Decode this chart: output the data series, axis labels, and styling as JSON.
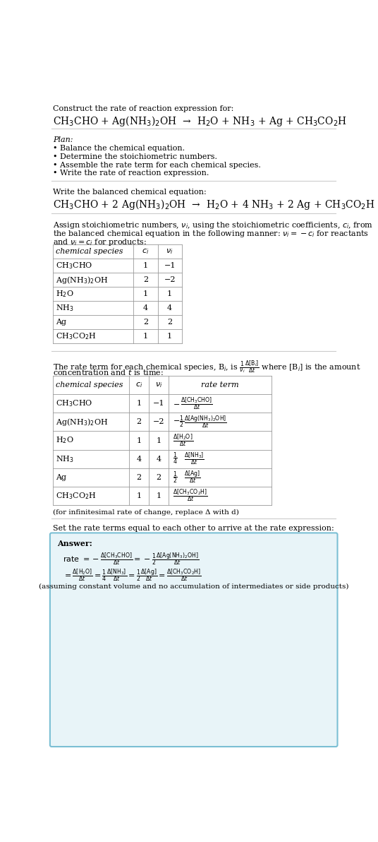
{
  "title_line1": "Construct the rate of reaction expression for:",
  "reaction_unbalanced": "CH$_3$CHO + Ag(NH$_3$)$_2$OH  →  H$_2$O + NH$_3$ + Ag + CH$_3$CO$_2$H",
  "plan_header": "Plan:",
  "plan_items": [
    "• Balance the chemical equation.",
    "• Determine the stoichiometric numbers.",
    "• Assemble the rate term for each chemical species.",
    "• Write the rate of reaction expression."
  ],
  "balanced_header": "Write the balanced chemical equation:",
  "reaction_balanced": "CH$_3$CHO + 2 Ag(NH$_3$)$_2$OH  →  H$_2$O + 4 NH$_3$ + 2 Ag + CH$_3$CO$_2$H",
  "assign_text1": "Assign stoichiometric numbers, $\\nu_i$, using the stoichiometric coefficients, $c_i$, from",
  "assign_text2": "the balanced chemical equation in the following manner: $\\nu_i = -c_i$ for reactants",
  "assign_text3": "and $\\nu_i = c_i$ for products:",
  "table1_headers": [
    "chemical species",
    "$c_i$",
    "$\\nu_i$"
  ],
  "table1_data": [
    [
      "CH$_3$CHO",
      "1",
      "−1"
    ],
    [
      "Ag(NH$_3$)$_2$OH",
      "2",
      "−2"
    ],
    [
      "H$_2$O",
      "1",
      "1"
    ],
    [
      "NH$_3$",
      "4",
      "4"
    ],
    [
      "Ag",
      "2",
      "2"
    ],
    [
      "CH$_3$CO$_2$H",
      "1",
      "1"
    ]
  ],
  "rate_text1": "The rate term for each chemical species, B$_i$, is $\\frac{1}{\\nu_i}\\frac{\\Delta[\\mathrm{B}_i]}{\\Delta t}$ where [B$_i$] is the amount",
  "rate_text2": "concentration and $t$ is time:",
  "table2_headers": [
    "chemical species",
    "$c_i$",
    "$\\nu_i$",
    "rate term"
  ],
  "table2_species": [
    "CH$_3$CHO",
    "Ag(NH$_3$)$_2$OH",
    "H$_2$O",
    "NH$_3$",
    "Ag",
    "CH$_3$CO$_2$H"
  ],
  "table2_ci": [
    "1",
    "2",
    "1",
    "4",
    "2",
    "1"
  ],
  "table2_vi": [
    "−1",
    "−2",
    "1",
    "4",
    "2",
    "1"
  ],
  "table2_rate_num": [
    "−Δ[CH₃CHO]",
    "−1Δ[Ag(NH₃)₂OH]",
    "Δ[H₂O]",
    "1Δ[NH₃]",
    "1Δ[Ag]",
    "Δ[CH₃CO₂H]"
  ],
  "table2_rate_prefix": [
    "",
    "−1/2 ",
    "",
    "1/4 ",
    "1/2 ",
    ""
  ],
  "table2_rate_sign": [
    "−",
    "−1/2",
    "",
    "1/4",
    "1/2",
    ""
  ],
  "table2_rate_numer": [
    "Δ[CH₃CHO]",
    "Δ[Ag(NH₃)₂OH]",
    "Δ[H₂O]",
    "Δ[NH₃]",
    "Δ[Ag]",
    "Δ[CH₃CO₂H]"
  ],
  "infinitesimal_note": "(for infinitesimal rate of change, replace Δ with d)",
  "set_equal_text": "Set the rate terms equal to each other to arrive at the rate expression:",
  "answer_label": "Answer:",
  "answer_bg_color": "#e8f4f8",
  "answer_border_color": "#7bbfd4",
  "assuming_note": "(assuming constant volume and no accumulation of intermediates or side products)",
  "bg_color": "#ffffff",
  "text_color": "#000000",
  "separator_color": "#cccccc"
}
